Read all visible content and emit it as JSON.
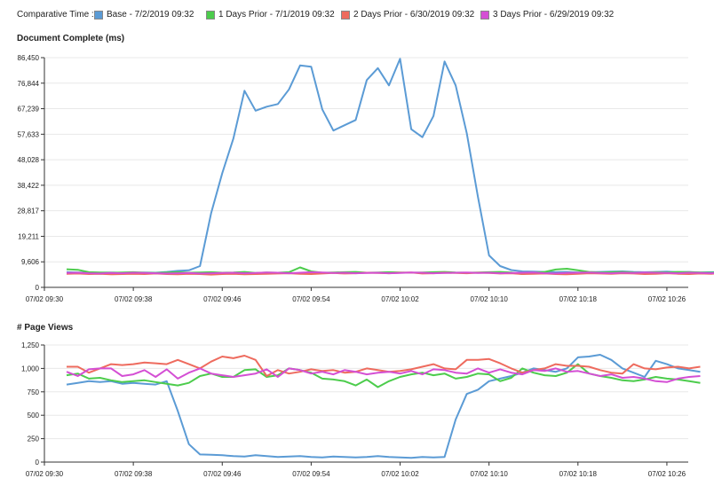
{
  "legend": {
    "title": "Comparative Time :",
    "items": [
      {
        "label": "Base - 7/2/2019 09:32",
        "color": "#5b9bd5"
      },
      {
        "label": "1 Days Prior - 7/1/2019 09:32",
        "color": "#4ccc4c"
      },
      {
        "label": "2 Days Prior - 6/30/2019 09:32",
        "color": "#ee6b5e"
      },
      {
        "label": "3 Days Prior - 6/29/2019 09:32",
        "color": "#d44fd4"
      }
    ]
  },
  "chart_data": [
    {
      "type": "line",
      "title": "Document Complete (ms)",
      "ylim": [
        0,
        86450
      ],
      "y_ticks": [
        "0",
        "9,606",
        "19,211",
        "28,817",
        "38,422",
        "48,028",
        "57,633",
        "67,239",
        "76,844",
        "86,450"
      ],
      "x_ticks": [
        "07/02 09:30",
        "07/02 09:38",
        "07/02 09:46",
        "07/02 09:54",
        "07/02 10:02",
        "07/02 10:10",
        "07/02 10:18",
        "07/02 10:26"
      ],
      "x_start": "09:32",
      "x_interval_min": 1,
      "series": [
        {
          "name": "Base - 7/2/2019 09:32",
          "color": "#5b9bd5",
          "values": [
            5700,
            5600,
            5500,
            5500,
            5600,
            5400,
            5500,
            5600,
            5500,
            5800,
            6200,
            6400,
            8000,
            28000,
            43000,
            56000,
            74000,
            66500,
            68000,
            69000,
            74500,
            83500,
            83000,
            67000,
            59000,
            61000,
            63000,
            78000,
            82500,
            76000,
            86000,
            59500,
            56500,
            64500,
            85000,
            76000,
            58000,
            34000,
            12000,
            8000,
            6500,
            6000,
            5900,
            5800,
            5700,
            5800,
            5600,
            5700,
            5800,
            5900,
            6000,
            5800,
            5700,
            5800,
            5900,
            5700,
            5800,
            5600,
            5700,
            5800,
            5700,
            5800
          ]
        },
        {
          "name": "1 Days Prior - 7/1/2019 09:32",
          "color": "#4ccc4c",
          "values": [
            6800,
            6600,
            5700,
            5600,
            5500,
            5600,
            5700,
            5500,
            5400,
            5600,
            5700,
            5500,
            5600,
            5700,
            5500,
            5600,
            5800,
            5400,
            5600,
            5500,
            5700,
            7500,
            6000,
            5500,
            5600,
            5700,
            5800,
            5500,
            5600,
            5700,
            5600,
            5500,
            5600,
            5700,
            5800,
            5600,
            5500,
            5600,
            5700,
            5800,
            5600,
            5000,
            5500,
            5800,
            6700,
            7000,
            6400,
            5800,
            5600,
            5700,
            5800,
            5600,
            5500,
            5700,
            5600,
            5800,
            5700,
            5600,
            5500,
            5700,
            5800,
            5900
          ]
        },
        {
          "name": "2 Days Prior - 6/30/2019 09:32",
          "color": "#ee6b5e",
          "values": [
            5100,
            5200,
            5000,
            5100,
            4900,
            5000,
            5100,
            5000,
            5200,
            5000,
            4900,
            5100,
            5000,
            4800,
            5000,
            5100,
            4900,
            5000,
            5100,
            5200,
            5300,
            5100,
            5000,
            5200,
            5400,
            5200,
            5300,
            5500,
            5400,
            5300,
            5500,
            5600,
            5200,
            5300,
            5500,
            5400,
            5300,
            5500,
            5400,
            5200,
            5300,
            5000,
            5100,
            5200,
            5000,
            4900,
            5100,
            5300,
            5200,
            5100,
            5300,
            5200,
            5000,
            5100,
            5300,
            5100,
            5000,
            5200,
            5100,
            5300,
            5000,
            5200
          ]
        },
        {
          "name": "3 Days Prior - 6/29/2019 09:32",
          "color": "#d44fd4",
          "values": [
            5400,
            5500,
            5300,
            5200,
            5400,
            5300,
            5500,
            5400,
            5300,
            5200,
            5300,
            5400,
            5200,
            5300,
            5400,
            5500,
            5300,
            5400,
            5600,
            5500,
            5300,
            5500,
            5700,
            5600,
            5400,
            5500,
            5300,
            5400,
            5500,
            5300,
            5400,
            5600,
            5500,
            5300,
            5400,
            5500,
            5600,
            5400,
            5500,
            5300,
            5400,
            5500,
            5600,
            5300,
            5200,
            5400,
            5500,
            5600,
            5400,
            5300,
            5500,
            5400,
            5600,
            5500,
            5400,
            5300,
            5500,
            5400,
            5300,
            5500,
            5600,
            5800
          ]
        }
      ]
    },
    {
      "type": "line",
      "title": "# Page Views",
      "ylim": [
        0,
        1375
      ],
      "y_ticks": [
        "0",
        "250",
        "500",
        "750",
        "1,000",
        "1,250"
      ],
      "x_ticks": [
        "07/02 09:30",
        "07/02 09:38",
        "07/02 09:46",
        "07/02 09:54",
        "07/02 10:02",
        "07/02 10:10",
        "07/02 10:18",
        "07/02 10:26"
      ],
      "x_start": "09:32",
      "x_interval_min": 1,
      "series": [
        {
          "name": "Base - 7/2/2019 09:32",
          "color": "#5b9bd5",
          "values": [
            910,
            930,
            950,
            940,
            950,
            920,
            930,
            920,
            910,
            950,
            600,
            210,
            90,
            85,
            80,
            70,
            65,
            80,
            70,
            60,
            65,
            70,
            60,
            55,
            65,
            60,
            55,
            60,
            70,
            60,
            55,
            50,
            60,
            55,
            60,
            500,
            800,
            850,
            950,
            980,
            1010,
            1050,
            1100,
            1080,
            1060,
            1100,
            1230,
            1240,
            1260,
            1200,
            1100,
            1050,
            1000,
            1190,
            1150,
            1100,
            1080,
            1060
          ]
        },
        {
          "name": "1 Days Prior - 7/1/2019 09:32",
          "color": "#4ccc4c",
          "values": [
            1020,
            1040,
            980,
            990,
            960,
            940,
            950,
            960,
            940,
            920,
            900,
            930,
            1010,
            1040,
            1000,
            1000,
            1080,
            1090,
            1000,
            1020,
            1100,
            1080,
            1050,
            980,
            970,
            950,
            900,
            970,
            880,
            950,
            1000,
            1030,
            1050,
            1020,
            1040,
            980,
            1000,
            1040,
            1030,
            950,
            990,
            1100,
            1050,
            1020,
            1010,
            1050,
            1150,
            1040,
            1010,
            990,
            960,
            950,
            970,
            1000,
            980,
            970,
            950,
            930
          ]
        },
        {
          "name": "2 Days Prior - 6/30/2019 09:32",
          "color": "#ee6b5e",
          "values": [
            1120,
            1120,
            1050,
            1100,
            1150,
            1140,
            1150,
            1170,
            1160,
            1150,
            1200,
            1150,
            1100,
            1180,
            1240,
            1220,
            1250,
            1200,
            1010,
            1080,
            1040,
            1060,
            1090,
            1070,
            1080,
            1050,
            1060,
            1100,
            1080,
            1060,
            1070,
            1090,
            1120,
            1150,
            1100,
            1090,
            1200,
            1200,
            1210,
            1160,
            1100,
            1050,
            1080,
            1100,
            1150,
            1130,
            1130,
            1120,
            1080,
            1050,
            1040,
            1150,
            1100,
            1090,
            1110,
            1120,
            1100,
            1120
          ]
        },
        {
          "name": "3 Days Prior - 6/29/2019 09:32",
          "color": "#d44fd4",
          "values": [
            1060,
            1010,
            1090,
            1100,
            1100,
            1010,
            1030,
            1080,
            1000,
            1090,
            980,
            1050,
            1100,
            1040,
            1020,
            1000,
            1020,
            1040,
            1090,
            1000,
            1100,
            1080,
            1040,
            1060,
            1030,
            1080,
            1060,
            1030,
            1050,
            1060,
            1040,
            1070,
            1030,
            1090,
            1080,
            1050,
            1040,
            1100,
            1050,
            1090,
            1050,
            1030,
            1080,
            1070,
            1100,
            1060,
            1070,
            1040,
            1010,
            1030,
            990,
            1000,
            980,
            950,
            940,
            980,
            1000,
            1010
          ]
        }
      ]
    }
  ]
}
